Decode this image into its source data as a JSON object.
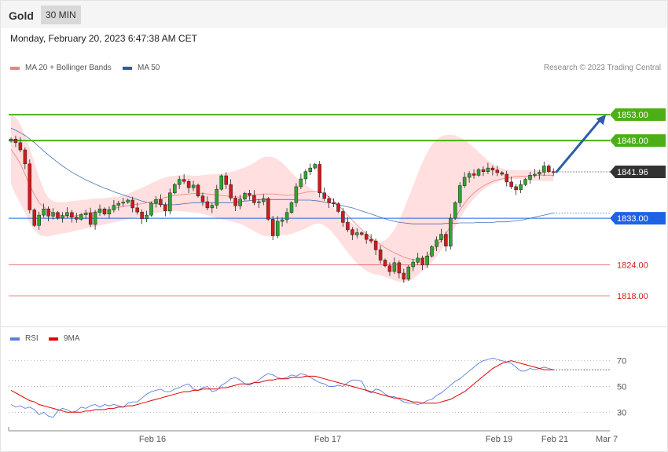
{
  "header": {
    "instrument": "Gold",
    "interval": "30 MIN"
  },
  "datetime": "Monday, February 20, 2023 6:47:38 AM CET",
  "legend_top": [
    {
      "label": "MA 20 + Bollinger Bands",
      "color": "#f08080"
    },
    {
      "label": "MA 50",
      "color": "#2a5caa"
    }
  ],
  "legend_bottom": [
    {
      "label": "RSI",
      "color": "#5b7fdb"
    },
    {
      "label": "9MA",
      "color": "#e00000"
    }
  ],
  "copyright": "Research © 2023 Trading Central",
  "chart_data": [
    {
      "type": "candlestick",
      "ylim": [
        1813,
        1860
      ],
      "x_ticks": [
        "Feb 16",
        "Feb 17",
        "Feb 19",
        "Feb 21",
        "Mar 7"
      ],
      "levels": [
        {
          "value": 1853.0,
          "label": "1853.00",
          "kind": "resistance",
          "color": "#4caf18"
        },
        {
          "value": 1848.0,
          "label": "1848.00",
          "kind": "resistance",
          "color": "#4caf18"
        },
        {
          "value": 1841.96,
          "label": "1841.96",
          "kind": "last",
          "color": "#333333"
        },
        {
          "value": 1833.0,
          "label": "1833.00",
          "kind": "pivot",
          "color": "#1e63e6"
        },
        {
          "value": 1824.0,
          "label": "1824.00",
          "kind": "support",
          "color": "#d42020"
        },
        {
          "value": 1818.0,
          "label": "1818.00",
          "kind": "support",
          "color": "#d42020"
        }
      ],
      "close": [
        1848.3,
        1847.6,
        1846.2,
        1843.5,
        1834.6,
        1831.6,
        1833.6,
        1834.8,
        1833.4,
        1834.1,
        1833.0,
        1833.5,
        1834.1,
        1833.2,
        1832.8,
        1833.7,
        1834.0,
        1831.8,
        1834.1,
        1834.8,
        1833.8,
        1834.6,
        1835.5,
        1835.9,
        1836.1,
        1836.5,
        1835.0,
        1834.2,
        1832.9,
        1833.6,
        1835.9,
        1836.6,
        1835.6,
        1834.4,
        1837.9,
        1839.5,
        1840.5,
        1840.1,
        1838.9,
        1839.4,
        1837.3,
        1836.2,
        1835.0,
        1835.5,
        1838.6,
        1841.2,
        1839.5,
        1836.9,
        1835.4,
        1836.7,
        1837.8,
        1837.4,
        1836.0,
        1836.2,
        1836.8,
        1832.8,
        1829.6,
        1832.4,
        1832.7,
        1834.1,
        1836.0,
        1839.1,
        1840.6,
        1842.0,
        1842.7,
        1843.4,
        1837.9,
        1836.8,
        1836.0,
        1835.8,
        1834.3,
        1832.2,
        1830.8,
        1829.8,
        1830.2,
        1829.9,
        1828.9,
        1828.6,
        1826.9,
        1824.9,
        1823.8,
        1822.7,
        1824.4,
        1822.4,
        1821.2,
        1823.6,
        1824.5,
        1825.3,
        1824.0,
        1825.7,
        1827.5,
        1828.8,
        1829.9,
        1827.6,
        1833.0,
        1836.0,
        1839.3,
        1840.9,
        1841.6,
        1841.3,
        1842.4,
        1842.0,
        1842.7,
        1842.3,
        1841.8,
        1841.5,
        1840.0,
        1839.1,
        1838.5,
        1839.5,
        1840.5,
        1841.3,
        1841.5,
        1841.9,
        1843.1,
        1842.0,
        1841.96
      ],
      "ma20": [
        1846.3,
        1845.0,
        1843.6,
        1841.5,
        1839.4,
        1837.6,
        1836.0,
        1835.2,
        1834.5,
        1834.0,
        1833.7,
        1833.5,
        1833.4,
        1833.4,
        1833.5,
        1833.7,
        1834.0,
        1834.1,
        1834.2,
        1834.3,
        1834.5,
        1834.7,
        1834.9,
        1835.1,
        1835.3,
        1835.4,
        1835.6,
        1835.7,
        1835.8,
        1836.0,
        1836.2,
        1836.5,
        1836.8,
        1837.0,
        1837.2,
        1837.4,
        1837.5,
        1837.6,
        1837.7,
        1837.8,
        1837.8,
        1837.8,
        1837.7,
        1837.6,
        1837.5,
        1837.4,
        1837.3,
        1837.2,
        1837.1,
        1837.1,
        1837.1,
        1837.3,
        1837.5,
        1837.6,
        1837.7,
        1837.7,
        1837.7,
        1837.6,
        1837.5,
        1837.4,
        1837.5,
        1837.6,
        1837.8,
        1838.0,
        1838.1,
        1838.2,
        1838.1,
        1837.7,
        1837.1,
        1836.4,
        1835.5,
        1834.6,
        1833.6,
        1832.6,
        1831.6,
        1830.8,
        1830.0,
        1829.2,
        1828.5,
        1827.9,
        1827.3,
        1826.8,
        1826.3,
        1825.9,
        1825.5,
        1825.2,
        1825.0,
        1825.0,
        1825.2,
        1825.7,
        1826.5,
        1827.5,
        1828.7,
        1830.0,
        1831.5,
        1833.1,
        1834.6,
        1835.9,
        1837.0,
        1837.9,
        1838.6,
        1839.2,
        1839.7,
        1840.1,
        1840.4,
        1840.6,
        1840.8,
        1840.9,
        1841.0,
        1841.1,
        1841.1,
        1841.2,
        1841.2,
        1841.3,
        1841.3,
        1841.3,
        1841.3
      ],
      "bb_upper": [
        1853.0,
        1852.5,
        1851.2,
        1849.1,
        1846.6,
        1843.8,
        1840.9,
        1838.5,
        1837.0,
        1836.3,
        1836.1,
        1836.1,
        1836.2,
        1836.3,
        1836.4,
        1836.5,
        1836.6,
        1836.7,
        1836.8,
        1836.8,
        1836.9,
        1837.0,
        1837.1,
        1837.2,
        1837.4,
        1837.7,
        1838.1,
        1838.5,
        1838.9,
        1839.3,
        1839.8,
        1840.2,
        1840.6,
        1840.9,
        1841.1,
        1841.2,
        1841.3,
        1841.3,
        1841.3,
        1841.2,
        1841.2,
        1841.3,
        1841.4,
        1841.5,
        1841.5,
        1841.6,
        1841.8,
        1841.9,
        1842.2,
        1842.5,
        1842.8,
        1843.2,
        1843.7,
        1844.3,
        1844.8,
        1844.9,
        1844.8,
        1844.4,
        1843.7,
        1842.8,
        1841.8,
        1840.9,
        1840.2,
        1839.5,
        1838.8,
        1838.1,
        1837.3,
        1836.5,
        1835.7,
        1834.9,
        1834.2,
        1833.5,
        1832.8,
        1832.0,
        1831.3,
        1830.5,
        1829.8,
        1829.2,
        1828.7,
        1828.5,
        1828.7,
        1829.6,
        1830.8,
        1832.6,
        1834.7,
        1837.0,
        1839.3,
        1841.6,
        1843.8,
        1845.7,
        1847.2,
        1848.2,
        1848.8,
        1849.1,
        1849.1,
        1849.0,
        1848.6,
        1848.1,
        1847.4,
        1846.6,
        1845.8,
        1845.0,
        1844.2,
        1843.5,
        1843.0,
        1842.6,
        1842.4,
        1842.3,
        1842.3,
        1842.3,
        1842.3,
        1842.3,
        1842.3,
        1842.3,
        1842.3,
        1842.3,
        1842.3
      ],
      "bb_lower": [
        1839.6,
        1837.5,
        1835.9,
        1834.0,
        1832.1,
        1830.6,
        1829.8,
        1829.5,
        1829.5,
        1829.7,
        1829.9,
        1830.1,
        1830.2,
        1830.4,
        1830.6,
        1830.8,
        1831.0,
        1831.2,
        1831.4,
        1831.6,
        1831.8,
        1832.0,
        1832.2,
        1832.4,
        1832.6,
        1832.8,
        1833.0,
        1833.2,
        1833.4,
        1833.6,
        1833.8,
        1834.0,
        1834.2,
        1834.3,
        1834.4,
        1834.4,
        1834.4,
        1834.3,
        1834.2,
        1834.1,
        1834.0,
        1833.8,
        1833.6,
        1833.3,
        1833.0,
        1832.8,
        1832.6,
        1832.4,
        1832.2,
        1831.9,
        1831.5,
        1831.0,
        1830.5,
        1830.0,
        1829.6,
        1829.5,
        1829.6,
        1829.7,
        1829.7,
        1829.8,
        1830.0,
        1830.3,
        1830.6,
        1831.0,
        1831.5,
        1831.9,
        1832.0,
        1831.6,
        1830.9,
        1829.9,
        1828.8,
        1827.6,
        1826.4,
        1825.3,
        1824.3,
        1823.5,
        1822.9,
        1822.4,
        1822.1,
        1822.0,
        1821.7,
        1821.3,
        1821.0,
        1820.7,
        1820.6,
        1820.8,
        1821.3,
        1822.0,
        1822.8,
        1823.6,
        1824.5,
        1825.6,
        1826.9,
        1828.3,
        1829.8,
        1831.4,
        1832.9,
        1834.4,
        1835.7,
        1836.8,
        1837.7,
        1838.5,
        1839.1,
        1839.6,
        1840.0,
        1840.3,
        1840.5,
        1840.6,
        1840.6,
        1840.6,
        1840.5,
        1840.3,
        1840.2,
        1840.2,
        1840.2,
        1840.2,
        1840.2
      ],
      "ma50": [
        1850.4,
        1850.0,
        1849.5,
        1849.0,
        1848.3,
        1847.6,
        1846.8,
        1846.0,
        1845.2,
        1844.5,
        1843.8,
        1843.1,
        1842.5,
        1841.9,
        1841.4,
        1840.9,
        1840.4,
        1840.0,
        1839.6,
        1839.2,
        1838.8,
        1838.5,
        1838.1,
        1837.8,
        1837.5,
        1837.2,
        1836.9,
        1836.6,
        1836.3,
        1836.1,
        1835.9,
        1835.8,
        1835.7,
        1835.6,
        1835.6,
        1835.6,
        1835.7,
        1835.8,
        1835.9,
        1836.0,
        1836.0,
        1836.0,
        1836.0,
        1836.0,
        1836.0,
        1836.0,
        1836.0,
        1836.0,
        1836.1,
        1836.2,
        1836.3,
        1836.4,
        1836.5,
        1836.6,
        1836.6,
        1836.6,
        1836.6,
        1836.6,
        1836.6,
        1836.6,
        1836.6,
        1836.5,
        1836.5,
        1836.5,
        1836.5,
        1836.4,
        1836.3,
        1836.1,
        1836.0,
        1835.8,
        1835.6,
        1835.4,
        1835.2,
        1835.0,
        1834.7,
        1834.4,
        1834.1,
        1833.8,
        1833.5,
        1833.2,
        1832.9,
        1832.6,
        1832.4,
        1832.2,
        1832.1,
        1832.0,
        1831.9,
        1831.9,
        1831.9,
        1831.9,
        1831.9,
        1831.9,
        1831.9,
        1832.0,
        1832.0,
        1832.0,
        1832.1,
        1832.1,
        1832.1,
        1832.1,
        1832.2,
        1832.2,
        1832.2,
        1832.2,
        1832.3,
        1832.3,
        1832.3,
        1832.4,
        1832.5,
        1832.6,
        1832.8,
        1833.0,
        1833.2,
        1833.4,
        1833.6,
        1833.8,
        1834.0
      ],
      "projection": {
        "from": 1841.96,
        "to": 1853.0
      }
    },
    {
      "type": "line",
      "ylim": [
        18,
        82
      ],
      "y_ticks": [
        70,
        50,
        30
      ],
      "series": [
        {
          "name": "RSI",
          "color": "#5b7fdb",
          "values": [
            36,
            34,
            35,
            33,
            34,
            32,
            28,
            30,
            27,
            26,
            31,
            33,
            32,
            30,
            31,
            34,
            33,
            35,
            36,
            34,
            36,
            35,
            36,
            35,
            34,
            37,
            38,
            38,
            41,
            44,
            46,
            47,
            48,
            46,
            46,
            48,
            49,
            51,
            52,
            48,
            47,
            49,
            50,
            46,
            47,
            51,
            53,
            56,
            57,
            55,
            52,
            51,
            53,
            55,
            58,
            60,
            59,
            57,
            56,
            57,
            59,
            58,
            60,
            59,
            57,
            55,
            53,
            52,
            50,
            50,
            51,
            50,
            53,
            55,
            55,
            54,
            47,
            45,
            48,
            47,
            44,
            42,
            42,
            40,
            38,
            37,
            37,
            36,
            37,
            39,
            40,
            43,
            45,
            48,
            51,
            54,
            56,
            59,
            62,
            65,
            68,
            70,
            71,
            72,
            71,
            70,
            69,
            68,
            65,
            62,
            62,
            64,
            63,
            64,
            65,
            64,
            63
          ]
        },
        {
          "name": "9MA",
          "color": "#e00000",
          "values": [
            47,
            45,
            43,
            41,
            39,
            38,
            36,
            35,
            34,
            33,
            32,
            31,
            30,
            30,
            30,
            30,
            31,
            31,
            32,
            32,
            32,
            33,
            33,
            34,
            34,
            35,
            35,
            36,
            37,
            38,
            39,
            40,
            41,
            42,
            43,
            44,
            45,
            46,
            46,
            47,
            47,
            48,
            48,
            48,
            48,
            49,
            49,
            50,
            51,
            52,
            52,
            52,
            53,
            53,
            54,
            55,
            55,
            56,
            56,
            56,
            57,
            57,
            57,
            58,
            58,
            58,
            57,
            56,
            55,
            54,
            53,
            52,
            51,
            50,
            49,
            48,
            47,
            46,
            45,
            44,
            43,
            42,
            41,
            41,
            40,
            39,
            38,
            38,
            37,
            37,
            37,
            37,
            38,
            39,
            40,
            42,
            44,
            46,
            49,
            52,
            55,
            58,
            61,
            64,
            66,
            68,
            69,
            70,
            69,
            68,
            67,
            66,
            65,
            64,
            63,
            63,
            63
          ]
        }
      ]
    }
  ]
}
